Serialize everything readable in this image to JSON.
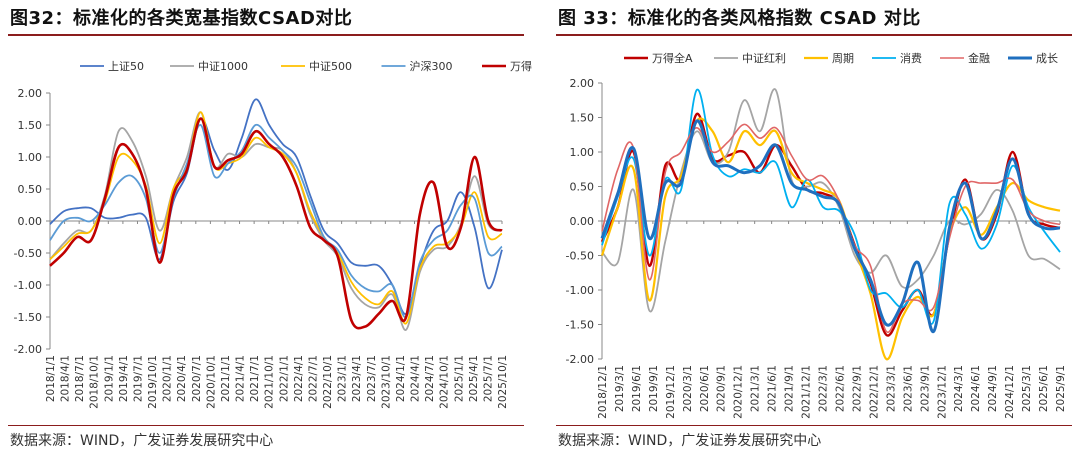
{
  "chart_data": [
    {
      "type": "line",
      "title": "图32：标准化的各类宽基指数CSAD对比",
      "source": "数据来源：WIND，广发证券发展研究中心",
      "ylim": [
        -2,
        2
      ],
      "y_ticks": [
        "2.00",
        "1.50",
        "1.00",
        "0.50",
        "0.00",
        "-0.50",
        "-1.00",
        "-1.50",
        "-2.00"
      ],
      "x_ticks": [
        "2018/1/1",
        "2018/4/1",
        "2018/7/1",
        "2018/10/1",
        "2019/1/1",
        "2019/4/1",
        "2019/7/1",
        "2019/10/1",
        "2020/1/1",
        "2020/4/1",
        "2020/7/1",
        "2020/10/1",
        "2021/1/1",
        "2021/4/1",
        "2021/7/1",
        "2021/10/1",
        "2022/1/1",
        "2022/4/1",
        "2022/7/1",
        "2022/10/1",
        "2023/1/1",
        "2023/4/1",
        "2023/7/1",
        "2023/10/1",
        "2024/1/1",
        "2024/4/1",
        "2024/7/1",
        "2024/10/1",
        "2025/1/1",
        "2025/4/1",
        "2025/7/1",
        "2025/10/1"
      ],
      "legend_position": "top",
      "grid": false,
      "series": [
        {
          "name": "上证50",
          "color": "#4472c4",
          "width": 1.8,
          "values": [
            -0.05,
            0.15,
            0.2,
            0.2,
            0.05,
            0.05,
            0.1,
            0.05,
            -0.6,
            0.3,
            0.75,
            1.6,
            1.1,
            0.8,
            1.3,
            1.9,
            1.5,
            1.2,
            1.0,
            0.4,
            -0.15,
            -0.35,
            -0.65,
            -0.7,
            -0.7,
            -1.0,
            -1.45,
            -0.7,
            -0.15,
            0.0,
            0.45,
            -0.1,
            -1.05,
            -0.45
          ]
        },
        {
          "name": "中证1000",
          "color": "#a5a5a5",
          "width": 1.8,
          "values": [
            -0.6,
            -0.35,
            -0.15,
            -0.15,
            0.4,
            1.4,
            1.25,
            0.7,
            -0.15,
            0.5,
            1.0,
            1.7,
            0.85,
            1.05,
            1.0,
            1.2,
            1.15,
            1.1,
            0.75,
            0.1,
            -0.3,
            -0.55,
            -1.05,
            -1.3,
            -1.35,
            -1.15,
            -1.7,
            -0.8,
            -0.45,
            -0.4,
            -0.05,
            0.7,
            -0.05,
            -0.15
          ]
        },
        {
          "name": "中证500",
          "color": "#ffc000",
          "width": 1.8,
          "values": [
            -0.6,
            -0.4,
            -0.2,
            -0.15,
            0.3,
            1.0,
            0.95,
            0.55,
            -0.35,
            0.5,
            0.85,
            1.7,
            0.85,
            0.9,
            1.0,
            1.3,
            1.15,
            1.05,
            0.75,
            0.15,
            -0.25,
            -0.5,
            -0.95,
            -1.2,
            -1.3,
            -1.1,
            -1.6,
            -0.75,
            -0.4,
            -0.35,
            -0.1,
            0.45,
            -0.25,
            -0.2
          ]
        },
        {
          "name": "沪深300",
          "color": "#5b9bd5",
          "width": 1.8,
          "values": [
            -0.3,
            0.0,
            0.05,
            0.0,
            0.25,
            0.6,
            0.7,
            0.35,
            -0.5,
            0.35,
            0.9,
            1.5,
            0.7,
            0.9,
            1.1,
            1.5,
            1.3,
            1.1,
            0.85,
            0.3,
            -0.25,
            -0.45,
            -0.85,
            -1.05,
            -1.1,
            -1.0,
            -1.5,
            -0.65,
            -0.3,
            -0.15,
            0.25,
            0.35,
            -0.5,
            -0.4
          ]
        },
        {
          "name": "万得全A",
          "color": "#c00000",
          "width": 2.6,
          "values": [
            -0.7,
            -0.5,
            -0.25,
            -0.3,
            0.35,
            1.15,
            1.05,
            0.5,
            -0.65,
            0.4,
            0.8,
            1.6,
            0.85,
            0.95,
            1.05,
            1.4,
            1.2,
            1.0,
            0.55,
            -0.1,
            -0.3,
            -0.55,
            -1.55,
            -1.65,
            -1.45,
            -1.25,
            -1.5,
            0.1,
            0.6,
            -0.4,
            -0.1,
            1.0,
            0.0,
            -0.15
          ]
        }
      ]
    },
    {
      "type": "line",
      "title": "图 33：标准化的各类风格指数 CSAD 对比",
      "source": "数据来源：WIND，广发证券发展研究中心",
      "ylim": [
        -2,
        2
      ],
      "y_ticks": [
        "2.00",
        "1.50",
        "1.00",
        "0.50",
        "0.00",
        "-0.50",
        "-1.00",
        "-1.50",
        "-2.00"
      ],
      "x_ticks": [
        "2018/12/1",
        "2019/3/1",
        "2019/6/1",
        "2019/9/1",
        "2019/12/1",
        "2020/3/1",
        "2020/6/1",
        "2020/9/1",
        "2020/12/1",
        "2021/3/1",
        "2021/6/1",
        "2021/9/1",
        "2021/12/1",
        "2022/3/1",
        "2022/6/1",
        "2022/9/1",
        "2022/12/1",
        "2023/3/1",
        "2023/6/1",
        "2023/9/1",
        "2023/12/1",
        "2024/3/1",
        "2024/6/1",
        "2024/9/1",
        "2024/12/1",
        "2025/3/1",
        "2025/6/1",
        "2025/9/1"
      ],
      "legend_position": "top",
      "grid": false,
      "series": [
        {
          "name": "万得全A",
          "color": "#c00000",
          "width": 2.4,
          "values": [
            -0.3,
            0.2,
            1.0,
            -0.65,
            0.8,
            0.6,
            1.55,
            0.9,
            0.95,
            1.0,
            0.7,
            1.1,
            0.8,
            0.45,
            0.4,
            0.25,
            -0.35,
            -0.9,
            -1.65,
            -1.3,
            -1.0,
            -1.35,
            -0.2,
            0.6,
            -0.25,
            0.1,
            1.0,
            0.1,
            -0.05,
            -0.1
          ]
        },
        {
          "name": "中证红利",
          "color": "#a5a5a5",
          "width": 1.8,
          "values": [
            -0.45,
            -0.6,
            0.45,
            -1.3,
            -0.3,
            0.7,
            1.3,
            0.85,
            1.0,
            1.75,
            1.3,
            1.9,
            0.6,
            0.5,
            0.55,
            0.2,
            -0.5,
            -0.75,
            -0.5,
            -0.95,
            -0.85,
            -0.5,
            0.0,
            -0.05,
            0.1,
            0.45,
            0.15,
            -0.5,
            -0.55,
            -0.7
          ]
        },
        {
          "name": "周期",
          "color": "#ffc000",
          "width": 2.2,
          "values": [
            -0.5,
            0.2,
            0.75,
            -1.15,
            0.35,
            0.65,
            1.45,
            1.3,
            0.85,
            1.3,
            1.1,
            1.3,
            0.7,
            0.55,
            0.45,
            0.3,
            -0.4,
            -1.05,
            -2.0,
            -1.4,
            -1.1,
            -1.35,
            -0.2,
            0.2,
            -0.2,
            0.2,
            0.55,
            0.3,
            0.2,
            0.15
          ]
        },
        {
          "name": "消费",
          "color": "#00b0f0",
          "width": 1.8,
          "values": [
            -0.35,
            0.35,
            0.9,
            -0.5,
            0.6,
            0.45,
            1.9,
            0.95,
            0.65,
            0.75,
            0.7,
            0.85,
            0.2,
            0.6,
            0.2,
            0.15,
            -0.2,
            -1.0,
            -1.05,
            -1.25,
            -1.0,
            -1.45,
            0.25,
            0.1,
            -0.4,
            -0.05,
            0.8,
            0.2,
            -0.15,
            -0.45
          ]
        },
        {
          "name": "金融",
          "color": "#e06666",
          "width": 1.6,
          "values": [
            -0.15,
            0.75,
            1.05,
            -0.85,
            0.7,
            1.0,
            1.35,
            1.0,
            1.15,
            1.4,
            1.2,
            1.35,
            0.95,
            0.6,
            0.65,
            0.3,
            -0.35,
            -0.65,
            -1.6,
            -1.2,
            -1.15,
            -1.25,
            -0.25,
            0.5,
            0.55,
            0.55,
            0.6,
            0.15,
            0.0,
            -0.05
          ]
        },
        {
          "name": "成长",
          "color": "#1f6fbf",
          "width": 3.0,
          "values": [
            -0.25,
            0.4,
            1.05,
            -0.25,
            0.55,
            0.55,
            1.45,
            0.85,
            0.8,
            0.7,
            0.8,
            1.1,
            0.55,
            0.45,
            0.35,
            0.25,
            -0.4,
            -0.85,
            -1.5,
            -1.2,
            -0.6,
            -1.6,
            -0.1,
            0.55,
            -0.25,
            0.15,
            0.9,
            0.1,
            -0.1,
            -0.1
          ]
        }
      ]
    }
  ]
}
